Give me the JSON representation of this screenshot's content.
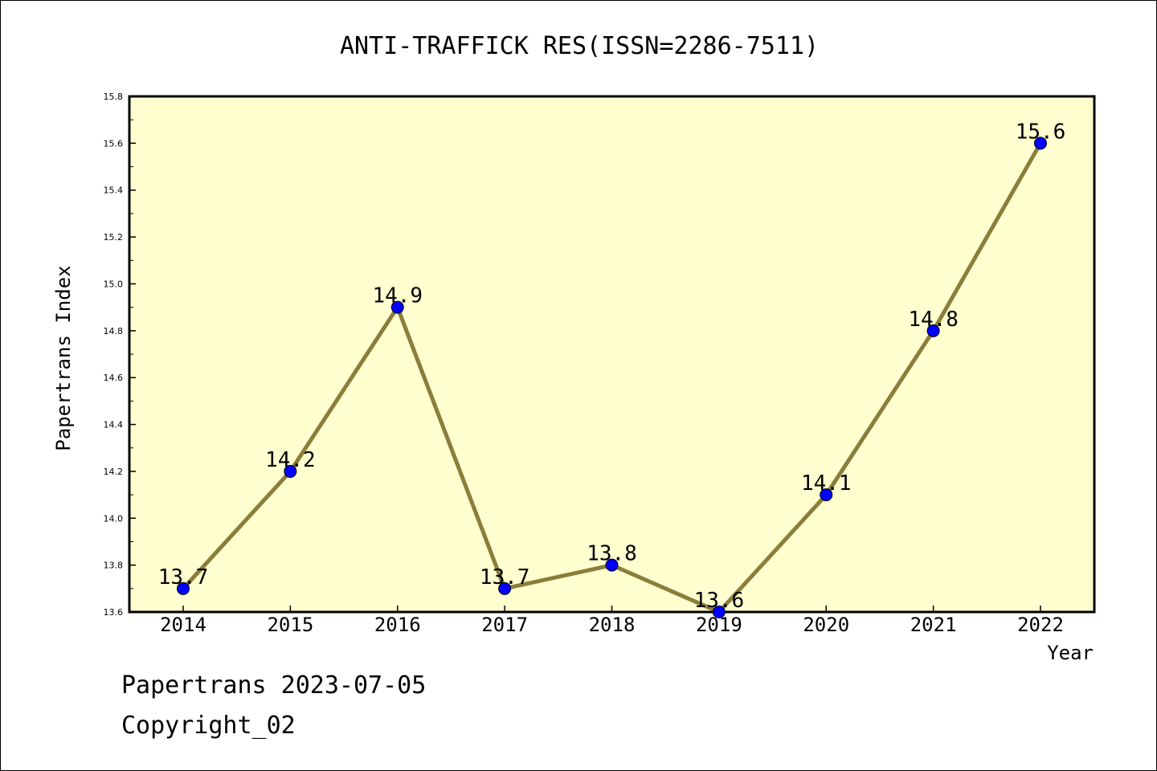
{
  "chart_data": {
    "type": "line",
    "title": "ANTI-TRAFFICK RES(ISSN=2286-7511)",
    "xlabel": "Year",
    "ylabel": "Papertrans Index",
    "categories": [
      "2014",
      "2015",
      "2016",
      "2017",
      "2018",
      "2019",
      "2020",
      "2021",
      "2022"
    ],
    "values": [
      13.7,
      14.2,
      14.9,
      13.7,
      13.8,
      13.6,
      14.1,
      14.8,
      15.6
    ],
    "data_labels": [
      "13.7",
      "14.2",
      "14.9",
      "13.7",
      "13.8",
      "13.6",
      "14.1",
      "14.8",
      "15.6"
    ],
    "ylim": [
      13.6,
      15.8
    ],
    "yticks": [
      "13.6",
      "13.8",
      "14.0",
      "14.2",
      "14.4",
      "14.6",
      "14.8",
      "15.0",
      "15.2",
      "15.4",
      "15.6",
      "15.8"
    ],
    "grid": false,
    "legend": "none",
    "colors": {
      "plot_background": "#ffffd0",
      "line": "#8b7d3a",
      "marker": "#0000ff"
    }
  },
  "footer": {
    "line1": "Papertrans 2023-07-05",
    "line2": "Copyright_02"
  }
}
